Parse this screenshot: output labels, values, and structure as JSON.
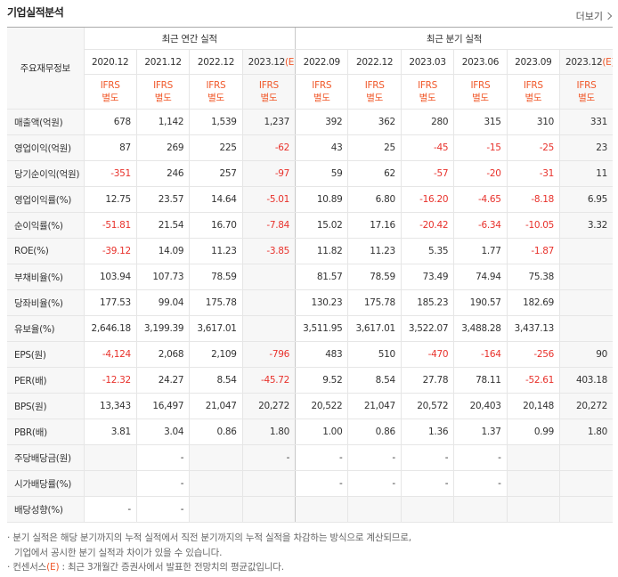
{
  "title": "기업실적분석",
  "more_link": "더보기",
  "notes": [
    "분기 실적은 해당 분기까지의 누적 실적에서 직전 분기까지의 누적 실적을 차감하는 방식으로 계산되므로,",
    "기업에서 공시한 분기 실적과 차이가 있을 수 있습니다."
  ],
  "consensus_note": {
    "term": "컨센서스",
    "mark": "(E)",
    "text": " : 최근 3개월간 증권사에서 발표한 전망치의 평균값입니다."
  },
  "table": {
    "corner": "주요재무정보",
    "groups": [
      "최근 연간 실적",
      "최근 분기 실적"
    ],
    "columns": [
      {
        "period": "2020.12",
        "standard": "IFRS",
        "basis": "별도"
      },
      {
        "period": "2021.12",
        "standard": "IFRS",
        "basis": "별도"
      },
      {
        "period": "2022.12",
        "standard": "IFRS",
        "basis": "별도"
      },
      {
        "period": "2023.12",
        "estimate": "(E)",
        "standard": "IFRS",
        "basis": "별도"
      },
      {
        "period": "2022.09",
        "standard": "IFRS",
        "basis": "별도"
      },
      {
        "period": "2022.12",
        "standard": "IFRS",
        "basis": "별도"
      },
      {
        "period": "2023.03",
        "standard": "IFRS",
        "basis": "별도"
      },
      {
        "period": "2023.06",
        "standard": "IFRS",
        "basis": "별도"
      },
      {
        "period": "2023.09",
        "standard": "IFRS",
        "basis": "별도"
      },
      {
        "period": "2023.12",
        "estimate": "(E)",
        "standard": "IFRS",
        "basis": "별도"
      }
    ],
    "rows": [
      {
        "label": "매출액(억원)",
        "cells": [
          "678",
          "1,142",
          "1,539",
          "1,237",
          "392",
          "362",
          "280",
          "315",
          "310",
          "331"
        ]
      },
      {
        "label": "영업이익(억원)",
        "cells": [
          "87",
          "269",
          "225",
          "-62",
          "43",
          "25",
          "-45",
          "-15",
          "-25",
          "23"
        ]
      },
      {
        "label": "당기순이익(억원)",
        "cells": [
          "-351",
          "246",
          "257",
          "-97",
          "59",
          "62",
          "-57",
          "-20",
          "-31",
          "11"
        ]
      },
      {
        "label": "영업이익률(%)",
        "cells": [
          "12.75",
          "23.57",
          "14.64",
          "-5.01",
          "10.89",
          "6.80",
          "-16.20",
          "-4.65",
          "-8.18",
          "6.95"
        ]
      },
      {
        "label": "순이익률(%)",
        "cells": [
          "-51.81",
          "21.54",
          "16.70",
          "-7.84",
          "15.02",
          "17.16",
          "-20.42",
          "-6.34",
          "-10.05",
          "3.32"
        ]
      },
      {
        "label": "ROE(%)",
        "cells": [
          "-39.12",
          "14.09",
          "11.23",
          "-3.85",
          "11.82",
          "11.23",
          "5.35",
          "1.77",
          "-1.87",
          null
        ]
      },
      {
        "label": "부채비율(%)",
        "cells": [
          "103.94",
          "107.73",
          "78.59",
          null,
          "81.57",
          "78.59",
          "73.49",
          "74.94",
          "75.38",
          null
        ]
      },
      {
        "label": "당좌비율(%)",
        "cells": [
          "177.53",
          "99.04",
          "175.78",
          null,
          "130.23",
          "175.78",
          "185.23",
          "190.57",
          "182.69",
          null
        ]
      },
      {
        "label": "유보율(%)",
        "cells": [
          "2,646.18",
          "3,199.39",
          "3,617.01",
          null,
          "3,511.95",
          "3,617.01",
          "3,522.07",
          "3,488.28",
          "3,437.13",
          null
        ]
      },
      {
        "label": "EPS(원)",
        "cells": [
          "-4,124",
          "2,068",
          "2,109",
          "-796",
          "483",
          "510",
          "-470",
          "-164",
          "-256",
          "90"
        ]
      },
      {
        "label": "PER(배)",
        "cells": [
          "-12.32",
          "24.27",
          "8.54",
          "-45.72",
          "9.52",
          "8.54",
          "27.78",
          "78.11",
          "-52.61",
          "403.18"
        ]
      },
      {
        "label": "BPS(원)",
        "cells": [
          "13,343",
          "16,497",
          "21,047",
          "20,272",
          "20,522",
          "21,047",
          "20,572",
          "20,403",
          "20,148",
          "20,272"
        ]
      },
      {
        "label": "PBR(배)",
        "cells": [
          "3.81",
          "3.04",
          "0.86",
          "1.80",
          "1.00",
          "0.86",
          "1.36",
          "1.37",
          "0.99",
          "1.80"
        ]
      },
      {
        "label": "주당배당금(원)",
        "cells": [
          null,
          "-",
          null,
          "-",
          "-",
          "-",
          "-",
          "-",
          null,
          null
        ]
      },
      {
        "label": "시가배당률(%)",
        "cells": [
          null,
          "-",
          null,
          null,
          "-",
          "-",
          "-",
          "-",
          null,
          null
        ]
      },
      {
        "label": "배당성향(%)",
        "cells": [
          "-",
          "-",
          null,
          null,
          null,
          null,
          null,
          null,
          null,
          null
        ]
      }
    ]
  }
}
